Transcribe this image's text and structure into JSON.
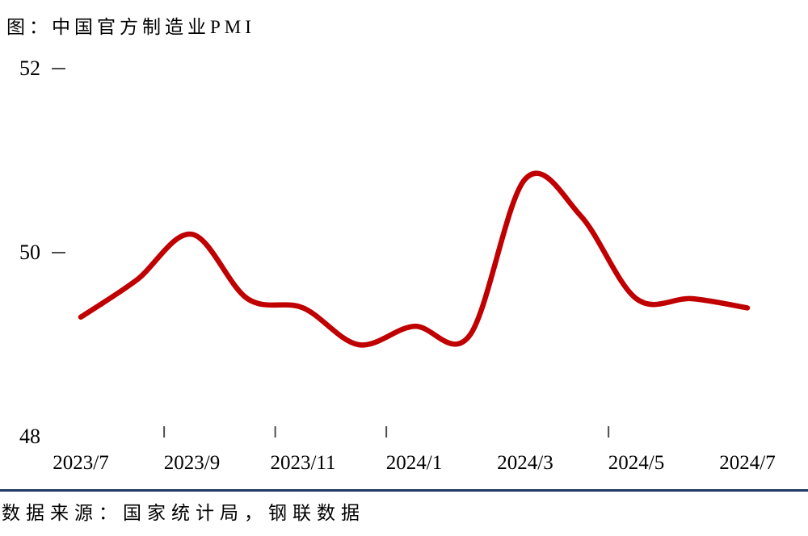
{
  "title": "图：中国官方制造业PMI",
  "source_note": "数据来源：国家统计局，钢联数据",
  "colors": {
    "line": "#C00000",
    "divider": "#1F3864",
    "tick": "#4d4d4d",
    "text": "#000000",
    "background": "#ffffff"
  },
  "chart_data": {
    "type": "line",
    "title": "中国官方制造业PMI",
    "x": [
      "2023/7",
      "2023/8",
      "2023/9",
      "2023/10",
      "2023/11",
      "2023/12",
      "2024/1",
      "2024/2",
      "2024/3",
      "2024/4",
      "2024/5",
      "2024/6",
      "2024/7"
    ],
    "values": [
      49.3,
      49.7,
      50.2,
      49.5,
      49.4,
      49.0,
      49.2,
      49.1,
      50.8,
      50.4,
      49.5,
      49.5,
      49.4
    ],
    "series_name": "中国官方制造业PMI",
    "ylim": [
      48,
      52
    ],
    "y_tick_labels": [
      "52",
      "50",
      "48"
    ],
    "y_tick_values": [
      52,
      50,
      48
    ],
    "y_dash_tick_values": [
      52,
      50
    ],
    "x_axis_labels": [
      "2023/7",
      "2023/9",
      "2023/11",
      "2024/1",
      "2024/3",
      "2024/5",
      "2024/7"
    ],
    "x_label_month_index": [
      0,
      2,
      4,
      6,
      8,
      10,
      12
    ],
    "x_dash_month_index": [
      1.5,
      3.5,
      5.5,
      9.5
    ],
    "grid": false,
    "legend_position": "none",
    "line_style": "smooth"
  }
}
